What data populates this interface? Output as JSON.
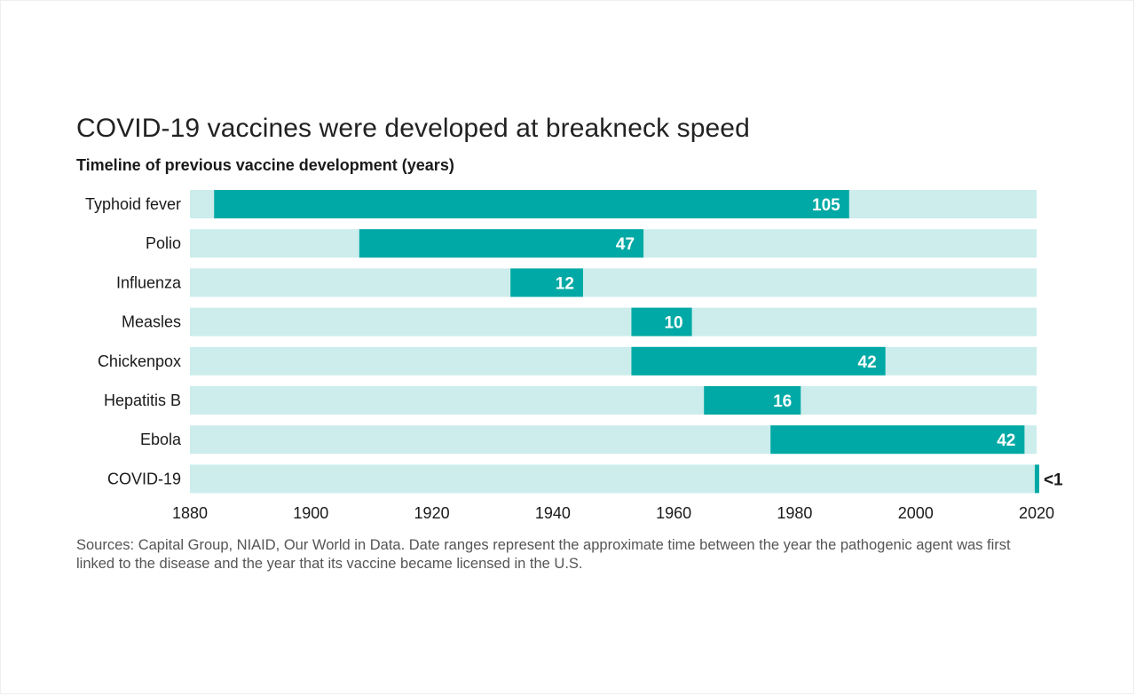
{
  "title": "COVID-19 vaccines were developed at breakneck speed",
  "subtitle": "Timeline of previous vaccine development (years)",
  "source_note": "Sources: Capital Group, NIAID, Our World in Data. Date ranges represent the approximate time between the year the pathogenic agent was first linked to the disease and the year that its vaccine became licensed in the U.S.",
  "colors": {
    "bar": "#00A9A5",
    "track": "#CCEDEC",
    "value_label_inside": "#ffffff",
    "value_label_outside": "#1a1a1a"
  },
  "chart_data": {
    "type": "bar",
    "orientation": "horizontal-range",
    "title": "COVID-19 vaccines were developed at breakneck speed",
    "subtitle": "Timeline of previous vaccine development (years)",
    "xlim": [
      1880,
      2020
    ],
    "x_ticks": [
      1880,
      1900,
      1920,
      1940,
      1960,
      1980,
      2000,
      2020
    ],
    "grid": false,
    "legend": "none",
    "categories": [
      "Typhoid fever",
      "Polio",
      "Influenza",
      "Measles",
      "Chickenpox",
      "Hepatitis B",
      "Ebola",
      "COVID-19"
    ],
    "ranges": [
      {
        "start": 1884,
        "end": 1989
      },
      {
        "start": 1908,
        "end": 1955
      },
      {
        "start": 1933,
        "end": 1945
      },
      {
        "start": 1953,
        "end": 1963
      },
      {
        "start": 1953,
        "end": 1995
      },
      {
        "start": 1965,
        "end": 1981
      },
      {
        "start": 1976,
        "end": 2018
      },
      {
        "start": 2019.7,
        "end": 2020.6
      }
    ],
    "labels": [
      "105",
      "47",
      "12",
      "10",
      "42",
      "16",
      "42",
      "<1"
    ]
  }
}
